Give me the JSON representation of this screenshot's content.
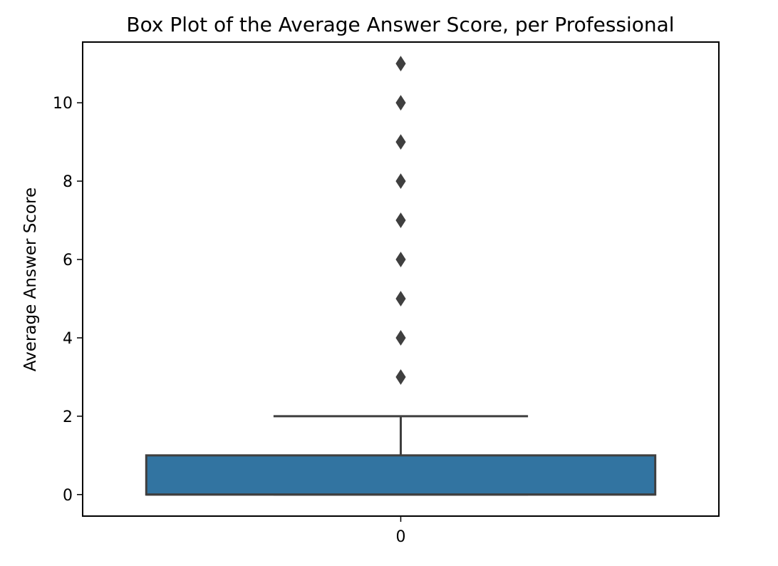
{
  "chart_data": {
    "type": "box",
    "title": "Box Plot of the Average Answer Score, per Professional",
    "xlabel": "",
    "ylabel": "Average Answer Score",
    "categories": [
      "0"
    ],
    "ylim": [
      -0.55,
      11.55
    ],
    "yticks": [
      0,
      2,
      4,
      6,
      8,
      10
    ],
    "grid": false,
    "boxes": [
      {
        "category": "0",
        "min": 0,
        "q1": 0,
        "median": 0,
        "q3": 1,
        "max": 2,
        "outliers": [
          3,
          4,
          5,
          6,
          7,
          8,
          9,
          10,
          11
        ]
      }
    ],
    "colors": {
      "box_fill": "#3274a1",
      "line": "#3f3f3f",
      "axes": "#000000",
      "background": "#ffffff"
    }
  }
}
